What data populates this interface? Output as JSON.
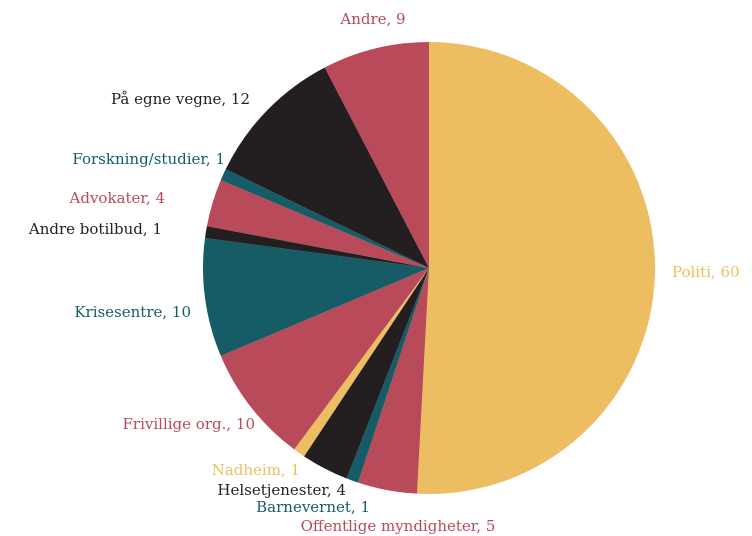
{
  "chart_data": {
    "type": "pie",
    "categories": [
      "Politi",
      "Offentlige myndigheter",
      "Barnevernet",
      "Helsetjenester",
      "Nadheim",
      "Frivillige org.",
      "Krisesentre",
      "Andre botilbud",
      "Advokater",
      "Forskning/studier",
      "På egne vegne",
      "Andre"
    ],
    "values": [
      60,
      5,
      1,
      4,
      1,
      10,
      10,
      1,
      4,
      1,
      12,
      9
    ],
    "value_labels": [
      "Politi, 60",
      "Offentlige myndigheter, 5",
      "Barnevernet, 1",
      "Helsetjenester, 4",
      "Nadheim, 1",
      "Frivillige org., 10",
      "Krisesentre, 10",
      "Andre botilbud, 1",
      "Advokater, 4",
      "Forskning/studier, 1",
      "På egne vegne, 12",
      "Andre, 9"
    ],
    "colors": [
      "#edbd62",
      "#b84a5a",
      "#155c66",
      "#231f20",
      "#edbd62",
      "#b84a5a",
      "#155c66",
      "#231f20",
      "#b84a5a",
      "#155c66",
      "#231f20",
      "#b84a5a"
    ]
  }
}
